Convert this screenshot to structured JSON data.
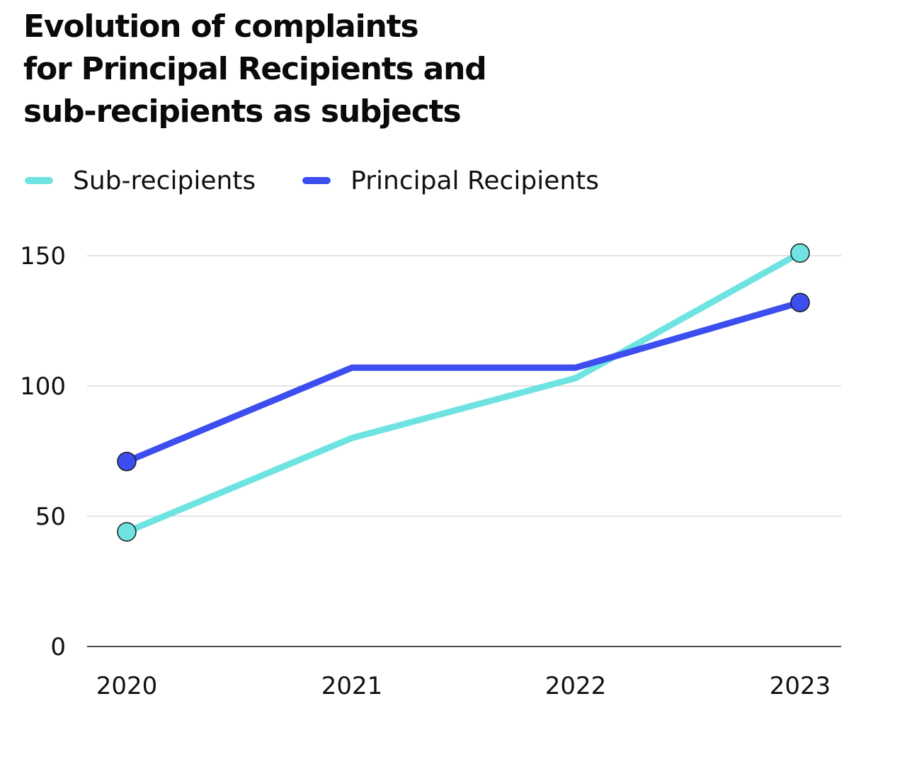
{
  "chart_data": {
    "type": "line",
    "title_lines": [
      "Evolution of complaints",
      "for Principal Recipients and",
      "sub-recipients as subjects"
    ],
    "categories": [
      "2020",
      "2021",
      "2022",
      "2023"
    ],
    "series": [
      {
        "name": "Sub-recipients",
        "color": "#6ee3e1",
        "values": [
          44,
          80,
          103,
          151
        ]
      },
      {
        "name": "Principal Recipients",
        "color": "#3d4ef0",
        "values": [
          71,
          107,
          107,
          132
        ]
      }
    ],
    "yticks": [
      0,
      50,
      100,
      150
    ],
    "ylim": [
      0,
      150
    ],
    "grid": true,
    "legend_position": "top-left"
  }
}
